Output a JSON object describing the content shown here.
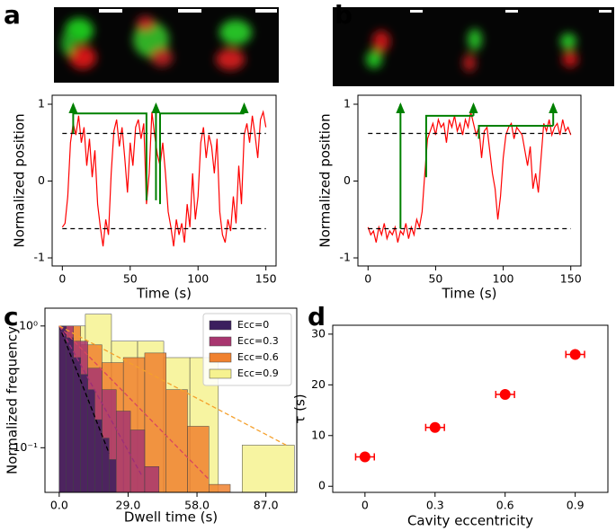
{
  "chart_data": [
    {
      "panel": "a",
      "type": "line",
      "xlabel": "Time (s)",
      "ylabel": "Normalized position",
      "x": [
        0,
        2,
        4,
        6,
        8,
        10,
        12,
        14,
        16,
        18,
        20,
        22,
        24,
        26,
        28,
        30,
        32,
        34,
        36,
        38,
        40,
        42,
        44,
        46,
        48,
        50,
        52,
        54,
        56,
        58,
        60,
        62,
        64,
        66,
        68,
        70,
        72,
        74,
        76,
        78,
        80,
        82,
        84,
        86,
        88,
        90,
        92,
        94,
        96,
        98,
        100,
        102,
        104,
        106,
        108,
        110,
        112,
        114,
        116,
        118,
        120,
        122,
        124,
        126,
        128,
        130,
        132,
        134,
        136,
        138,
        140,
        142,
        144,
        146,
        148,
        150
      ],
      "series": [
        {
          "color": "#ff0000",
          "values": [
            -0.6,
            -0.55,
            -0.2,
            0.5,
            0.75,
            0.6,
            0.85,
            0.5,
            0.7,
            0.2,
            0.55,
            0.05,
            0.4,
            -0.3,
            -0.6,
            -0.85,
            -0.5,
            -0.7,
            0.1,
            0.65,
            0.8,
            0.45,
            0.7,
            0.3,
            -0.15,
            0.5,
            0.2,
            0.7,
            0.8,
            0.55,
            0.75,
            -0.3,
            0.1,
            0.9,
            0.6,
            0.35,
            0.2,
            0.5,
            0.1,
            -0.4,
            -0.6,
            -0.85,
            -0.5,
            -0.7,
            -0.55,
            -0.8,
            -0.3,
            -0.6,
            0.1,
            -0.5,
            -0.2,
            0.5,
            0.7,
            0.3,
            0.6,
            0.45,
            0.1,
            0.55,
            -0.4,
            -0.7,
            -0.8,
            -0.5,
            -0.65,
            -0.2,
            -0.55,
            0.2,
            -0.3,
            0.6,
            0.75,
            0.5,
            0.85,
            0.6,
            0.3,
            0.8,
            0.9,
            0.7
          ]
        }
      ],
      "thresholds": [
        0.62,
        -0.62
      ],
      "threshold_color": "#000000",
      "annotation_color": "#008000",
      "annotations": [
        {
          "x": [
            8,
            8
          ],
          "y": [
            0.62,
            1.0
          ],
          "arrow": true
        },
        {
          "x": [
            8,
            62,
            62
          ],
          "y": [
            0.88,
            0.88,
            -0.25
          ],
          "arrow": false
        },
        {
          "x": [
            69,
            69
          ],
          "y": [
            -0.25,
            1.0
          ],
          "arrow": true
        },
        {
          "x": [
            72,
            72,
            134
          ],
          "y": [
            -0.3,
            0.88,
            0.88
          ],
          "arrow": false
        },
        {
          "x": [
            134,
            134
          ],
          "y": [
            0.88,
            1.0
          ],
          "arrow": true
        }
      ],
      "xlim": [
        -7.5,
        157.5
      ],
      "ylim": [
        -1.105,
        1.117
      ],
      "xticks": [
        0,
        50,
        100,
        150
      ],
      "yticks": [
        -1,
        0,
        1
      ]
    },
    {
      "panel": "b",
      "type": "line",
      "xlabel": "Time (s)",
      "ylabel": "Normalized position",
      "x": [
        0,
        2,
        4,
        6,
        8,
        10,
        12,
        14,
        16,
        18,
        20,
        22,
        24,
        26,
        28,
        30,
        32,
        34,
        36,
        38,
        40,
        42,
        44,
        46,
        48,
        50,
        52,
        54,
        56,
        58,
        60,
        62,
        64,
        66,
        68,
        70,
        72,
        74,
        76,
        78,
        80,
        82,
        84,
        86,
        88,
        90,
        92,
        94,
        96,
        98,
        100,
        102,
        104,
        106,
        108,
        110,
        112,
        114,
        116,
        118,
        120,
        122,
        124,
        126,
        128,
        130,
        132,
        134,
        136,
        138,
        140,
        142,
        144,
        146,
        148,
        150
      ],
      "series": [
        {
          "color": "#ff0000",
          "values": [
            -0.6,
            -0.7,
            -0.65,
            -0.8,
            -0.6,
            -0.7,
            -0.55,
            -0.75,
            -0.65,
            -0.7,
            -0.6,
            -0.8,
            -0.65,
            -0.7,
            -0.55,
            -0.75,
            -0.6,
            -0.7,
            -0.5,
            -0.6,
            -0.4,
            0.1,
            0.55,
            0.65,
            0.75,
            0.6,
            0.8,
            0.7,
            0.75,
            0.5,
            0.8,
            0.7,
            0.85,
            0.65,
            0.75,
            0.6,
            0.8,
            0.7,
            0.9,
            0.75,
            0.6,
            0.7,
            0.3,
            0.65,
            0.7,
            0.4,
            0.1,
            -0.1,
            -0.5,
            -0.2,
            0.3,
            0.6,
            0.7,
            0.75,
            0.55,
            0.7,
            0.65,
            0.6,
            0.4,
            0.2,
            0.45,
            -0.1,
            0.1,
            -0.15,
            0.3,
            0.75,
            0.65,
            0.8,
            0.6,
            0.7,
            0.75,
            0.6,
            0.8,
            0.65,
            0.7,
            0.6
          ]
        }
      ],
      "thresholds": [
        0.62,
        -0.62
      ],
      "threshold_color": "#000000",
      "annotation_color": "#008000",
      "annotations": [
        {
          "x": [
            24,
            24
          ],
          "y": [
            -0.62,
            1.0
          ],
          "arrow": true
        },
        {
          "x": [
            43,
            43,
            78
          ],
          "y": [
            0.05,
            0.85,
            0.85
          ],
          "arrow": false
        },
        {
          "x": [
            78,
            78
          ],
          "y": [
            0.85,
            1.0
          ],
          "arrow": true
        },
        {
          "x": [
            82,
            82,
            137
          ],
          "y": [
            0.55,
            0.72,
            0.72
          ],
          "arrow": false
        },
        {
          "x": [
            137,
            137
          ],
          "y": [
            0.72,
            1.0
          ],
          "arrow": true
        }
      ],
      "xlim": [
        -7.5,
        157.5
      ],
      "ylim": [
        -1.105,
        1.117
      ],
      "xticks": [
        0,
        50,
        100,
        150
      ],
      "yticks": [
        -1,
        0,
        1
      ]
    },
    {
      "panel": "c",
      "type": "histogram",
      "xlabel": "Dwell time (s)",
      "ylabel": "Normalized frequency",
      "log_y": true,
      "legend": "upper right",
      "series": [
        {
          "name": "Ecc=0",
          "color": "#3b1f5e",
          "bins": [
            0,
            3,
            6,
            9,
            12,
            15,
            18,
            21,
            24
          ],
          "values": [
            1.0,
            0.8,
            0.55,
            0.4,
            0.3,
            0.17,
            0.12,
            0.08
          ],
          "fit": {
            "x": [
              0,
              21
            ],
            "y": [
              1,
              0.09
            ],
            "color": "#000000"
          }
        },
        {
          "name": "Ecc=0.3",
          "color": "#a8366f",
          "bins": [
            0,
            6,
            12,
            18,
            24,
            30,
            36,
            42
          ],
          "values": [
            1.0,
            0.75,
            0.45,
            0.3,
            0.2,
            0.14,
            0.07
          ],
          "fit": {
            "x": [
              0,
              35
            ],
            "y": [
              1,
              0.058
            ],
            "color": "#9c2e78"
          }
        },
        {
          "name": "Ecc=0.6",
          "color": "#f0812f",
          "bins": [
            0,
            9,
            18,
            27,
            36,
            45,
            54,
            63,
            72
          ],
          "values": [
            1.0,
            0.7,
            0.5,
            0.55,
            0.6,
            0.3,
            0.15,
            0.05
          ],
          "fit": {
            "x": [
              0,
              63
            ],
            "y": [
              1,
              0.055
            ],
            "color": "#d9465f"
          }
        },
        {
          "name": "Ecc=0.9",
          "color": "#f6f290",
          "bins": [
            0,
            11,
            22,
            33,
            44,
            55,
            67,
            77,
            99
          ],
          "values": [
            1.0,
            1.25,
            0.75,
            0.75,
            0.55,
            0.55,
            0,
            0.105
          ],
          "fit": {
            "x": [
              0,
              96
            ],
            "y": [
              1,
              0.104
            ],
            "color": "#f5a02c"
          }
        }
      ],
      "xlim": [
        -6,
        100
      ],
      "ylim": [
        0.043,
        1.4
      ],
      "xticks": [
        {
          "value": 0,
          "label": "0.0"
        },
        {
          "value": 29,
          "label": "29.0"
        },
        {
          "value": 58,
          "label": "58.0"
        },
        {
          "value": 87,
          "label": "87.0"
        }
      ],
      "yticks": [
        {
          "value": 1,
          "label": "10⁰"
        },
        {
          "value": 0.1,
          "label": "10⁻¹"
        }
      ]
    },
    {
      "panel": "d",
      "type": "scatter",
      "xlabel": "Cavity eccentricity",
      "ylabel": "τ (s)",
      "x": [
        0,
        0.3,
        0.6,
        0.9
      ],
      "values": [
        5.8,
        11.6,
        18.1,
        26.0
      ],
      "xerr": [
        0.04,
        0.04,
        0.04,
        0.04
      ],
      "yerr": [
        0.4,
        0.4,
        0.4,
        0.5
      ],
      "color": "#ff0000",
      "xlim": [
        -0.138,
        1.04
      ],
      "ylim": [
        -1.2,
        31.75
      ],
      "xticks": [
        0,
        0.3,
        0.6,
        0.9
      ],
      "yticks": [
        0,
        10,
        20,
        30
      ]
    }
  ]
}
